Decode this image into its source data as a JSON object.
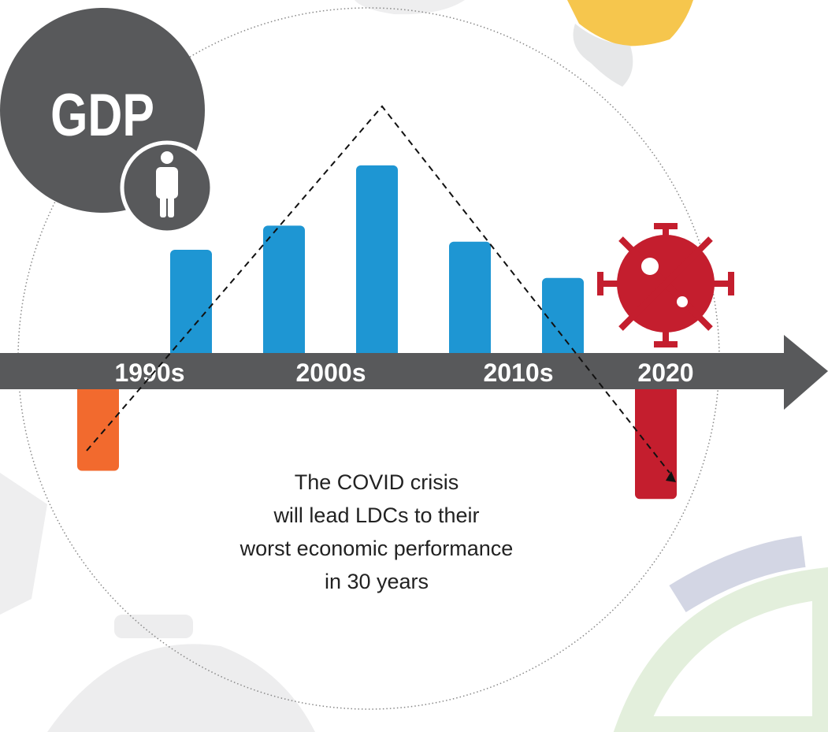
{
  "chart_data": {
    "type": "bar",
    "title": "GDP",
    "values": [
      -2.5,
      3,
      3.6,
      5.1,
      3.2,
      2.3,
      -3.2
    ],
    "colors": [
      "#f26a2e",
      "#1e96d3",
      "#1e96d3",
      "#1e96d3",
      "#1e96d3",
      "#1e96d3",
      "#c41e2e"
    ],
    "ylim": [
      -4,
      6
    ],
    "period_labels": [
      "1990s",
      "2000s",
      "2010s",
      "2020"
    ],
    "caption": [
      "The COVID crisis",
      "will lead LDCs to their",
      "worst economic performance",
      "in 30 years"
    ]
  }
}
